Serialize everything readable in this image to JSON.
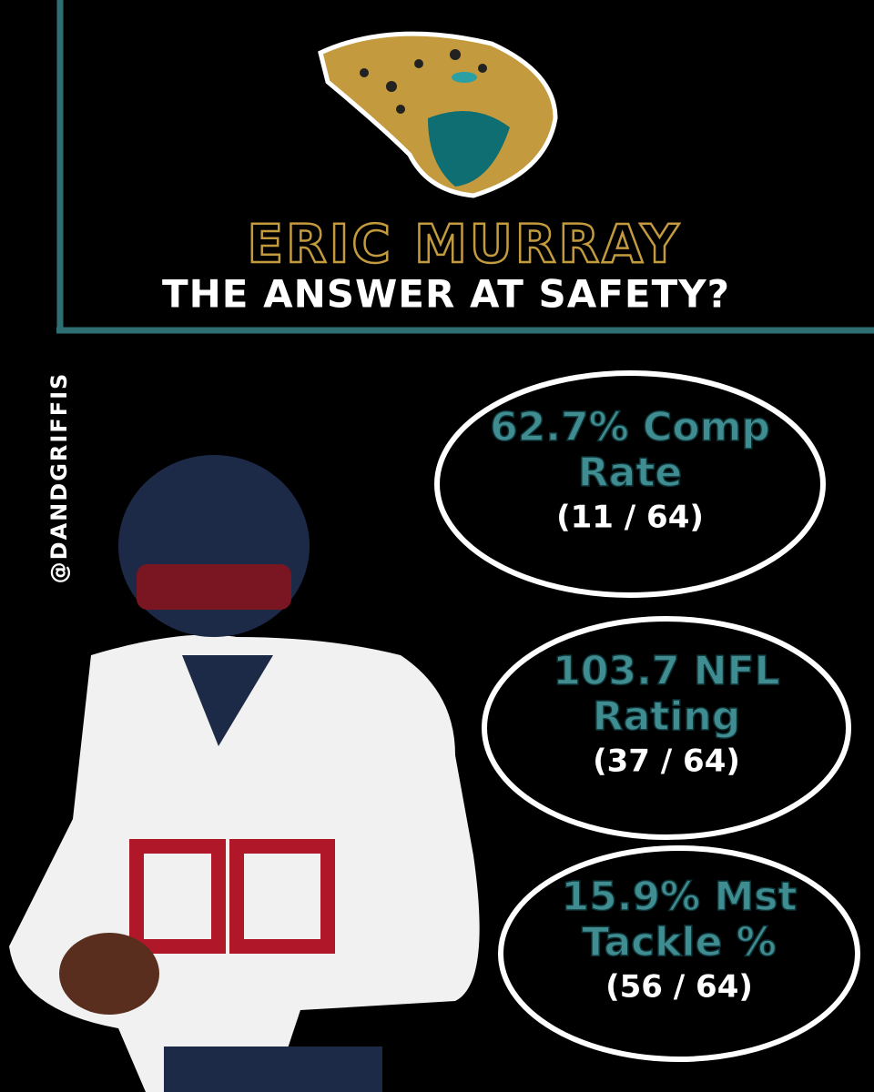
{
  "header": {
    "name": "ERIC MURRAY",
    "subtitle": "THE ANSWER AT SAFETY?"
  },
  "handle": "@DANDGRIFFIS",
  "stats": [
    {
      "lines": [
        "62.7% Comp",
        "Rate"
      ],
      "rank": "(11 / 64)"
    },
    {
      "lines": [
        "103.7 NFL",
        "Rating"
      ],
      "rank": "(37 / 64)"
    },
    {
      "lines": [
        "15.9% Mst",
        "Tackle %"
      ],
      "rank": "(56 / 64)"
    }
  ]
}
